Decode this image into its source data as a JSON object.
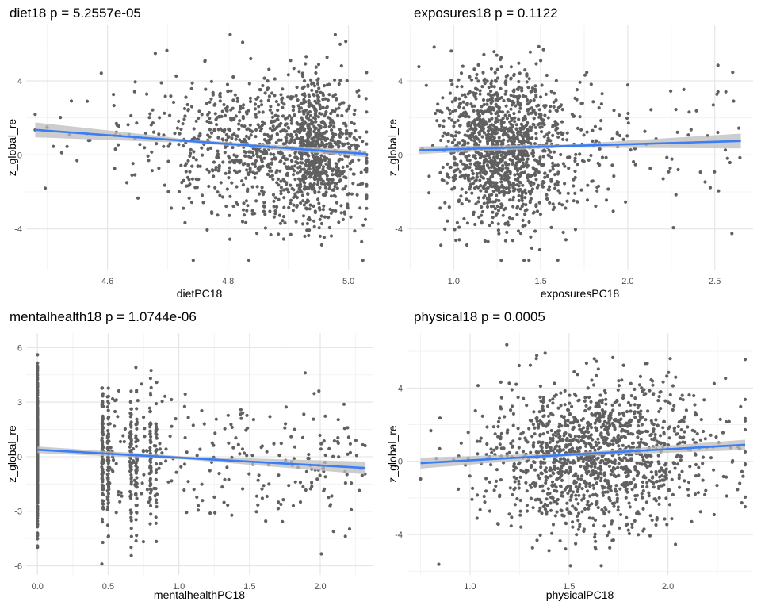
{
  "colors": {
    "point": "#606060",
    "line": "#3a7df5",
    "band": "#bcbcbc",
    "grid_major": "#e6e6e6",
    "grid_minor": "#f3f3f3"
  },
  "chart_data": [
    {
      "type": "scatter",
      "title": "diet18 p = 5.2557e-05",
      "xlabel": "dietPC18",
      "ylabel": "z_global_re",
      "xlim": [
        4.465,
        5.04
      ],
      "ylim": [
        -6.2,
        7.0
      ],
      "xticks": [
        4.6,
        4.8,
        5.0
      ],
      "xtick_labels": [
        "4.6",
        "4.8",
        "5.0"
      ],
      "yticks": [
        -4,
        0,
        4
      ],
      "ytick_labels": [
        "-4",
        "0",
        "4"
      ],
      "grid": true,
      "fit": {
        "x": [
          4.48,
          5.03
        ],
        "y": [
          1.35,
          0.05
        ],
        "se_band": [
          0.4,
          0.18
        ]
      },
      "n_points": 1400,
      "x_distribution": {
        "left_skew_mode": 4.92,
        "min": 4.48,
        "max": 5.03
      },
      "y_distribution": {
        "mean": 0.5,
        "sd": 2.0
      }
    },
    {
      "type": "scatter",
      "title": "exposures18 p = 0.1122",
      "xlabel": "exposuresPC18",
      "ylabel": "z_global_re",
      "xlim": [
        0.73,
        2.72
      ],
      "ylim": [
        -6.2,
        7.0
      ],
      "xticks": [
        1.0,
        1.5,
        2.0,
        2.5
      ],
      "xtick_labels": [
        "1.0",
        "1.5",
        "2.0",
        "2.5"
      ],
      "yticks": [
        -4,
        0,
        4
      ],
      "ytick_labels": [
        "-4",
        "0",
        "4"
      ],
      "grid": true,
      "fit": {
        "x": [
          0.8,
          2.65
        ],
        "y": [
          0.25,
          0.75
        ],
        "se_band": [
          0.2,
          0.4
        ]
      },
      "n_points": 1400,
      "x_distribution": {
        "right_skew_mode": 1.25,
        "min": 0.8,
        "max": 2.65
      },
      "y_distribution": {
        "mean": 0.5,
        "sd": 2.0
      }
    },
    {
      "type": "scatter",
      "title": "mentalhealth18 p = 1.0744e-06",
      "xlabel": "mentalhealthPC18",
      "ylabel": "z_global_re",
      "xlim": [
        -0.08,
        2.37
      ],
      "ylim": [
        -6.5,
        6.8
      ],
      "xticks": [
        0.0,
        0.5,
        1.0,
        1.5,
        2.0
      ],
      "xtick_labels": [
        "0.0",
        "0.5",
        "1.0",
        "1.5",
        "2.0"
      ],
      "yticks": [
        -6,
        -3,
        0,
        3,
        6
      ],
      "ytick_labels": [
        "-6",
        "-3",
        "0",
        "3",
        "6"
      ],
      "grid": true,
      "fit": {
        "x": [
          0.0,
          2.32
        ],
        "y": [
          0.38,
          -0.62
        ],
        "se_band": [
          0.18,
          0.35
        ]
      },
      "clusters": [
        {
          "x": 0.0,
          "n": 520
        },
        {
          "x": 0.46,
          "n": 90
        },
        {
          "x": 0.5,
          "n": 70
        },
        {
          "x": 0.66,
          "n": 70
        },
        {
          "x": 0.7,
          "n": 50
        },
        {
          "x": 0.8,
          "n": 50
        },
        {
          "x": 0.84,
          "n": 30
        }
      ],
      "n_scattered": 260,
      "y_distribution": {
        "mean": 0.2,
        "sd": 2.0
      }
    },
    {
      "type": "scatter",
      "title": "physical18 p = 0.0005",
      "xlabel": "physicalPC18",
      "ylabel": "z_global_re",
      "xlim": [
        0.68,
        2.43
      ],
      "ylim": [
        -6.2,
        7.0
      ],
      "xticks": [
        1.0,
        1.5,
        2.0
      ],
      "xtick_labels": [
        "1.0",
        "1.5",
        "2.0"
      ],
      "yticks": [
        -4,
        0,
        4
      ],
      "ytick_labels": [
        "-4",
        "0",
        "4"
      ],
      "grid": true,
      "fit": {
        "x": [
          0.75,
          2.39
        ],
        "y": [
          -0.1,
          0.9
        ],
        "se_band": [
          0.3,
          0.28
        ]
      },
      "n_points": 1400,
      "x_distribution": {
        "mode": 1.65,
        "sd": 0.28,
        "min": 0.75,
        "max": 2.39
      },
      "y_distribution": {
        "mean": 0.3,
        "sd": 2.0
      }
    }
  ]
}
